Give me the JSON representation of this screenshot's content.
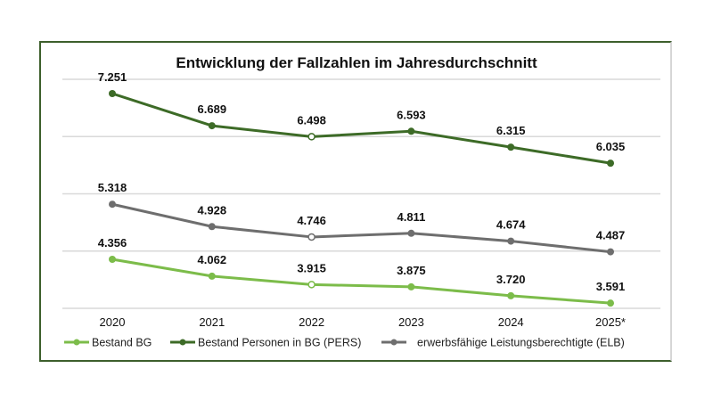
{
  "chart_data": {
    "type": "line",
    "title": "Entwicklung der Fallzahlen im Jahresdurchschnitt",
    "xlabel": "",
    "ylabel": "",
    "categories": [
      "2020",
      "2021",
      "2022",
      "2023",
      "2024",
      "2025*"
    ],
    "ylim": [
      3500,
      7500
    ],
    "gridlines": [
      3500,
      4500,
      5500,
      6500,
      7500
    ],
    "grid": true,
    "y_axis_labels_visible": false,
    "legend_position": "bottom",
    "series": [
      {
        "name": "Bestand BG",
        "color": "#7cbc4a",
        "values": [
          4356,
          4062,
          3915,
          3875,
          3720,
          3591
        ],
        "labels": [
          "4.356",
          "4.062",
          "3.915",
          "3.875",
          "3.720",
          "3.591"
        ]
      },
      {
        "name": "Bestand Personen in BG (PERS)",
        "color": "#3d6b27",
        "values": [
          7251,
          6689,
          6498,
          6593,
          6315,
          6035
        ],
        "labels": [
          "7.251",
          "6.689",
          "6.498",
          "6.593",
          "6.315",
          "6.035"
        ]
      },
      {
        "name": "erwerbsfähige Leistungsberechtigte (ELB)",
        "color": "#6e6e6e",
        "values": [
          5318,
          4928,
          4746,
          4811,
          4674,
          4487
        ],
        "labels": [
          "5.318",
          "4.928",
          "4.746",
          "4.811",
          "4.674",
          "4.487"
        ]
      }
    ],
    "hollow_markers_at": [
      "2022"
    ]
  },
  "colors": {
    "frame_left_top_bottom": "#3d5f2c",
    "frame_right": "#d6d6d6",
    "gridline": "#d9d9d9"
  }
}
